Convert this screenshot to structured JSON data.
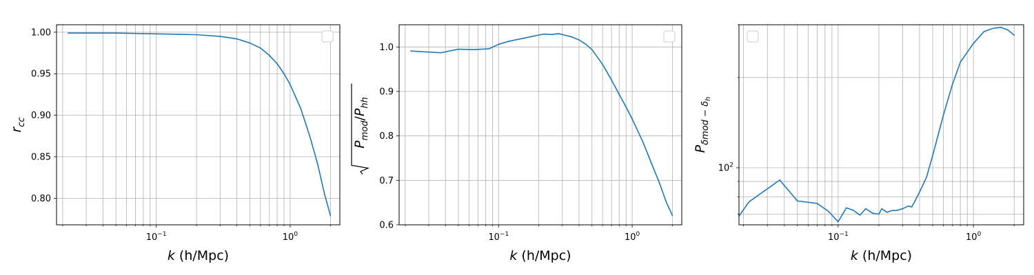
{
  "chart_data": [
    {
      "type": "line",
      "xscale": "log",
      "yscale": "linear",
      "xlim": [
        0.018,
        2.35
      ],
      "ylim": [
        0.768,
        1.009
      ],
      "grid": true,
      "legend": "top-right (empty)",
      "xlabel": {
        "var": "k",
        "unit": " (h/Mpc)"
      },
      "ylabel": {
        "base": "r",
        "sub": "cc"
      },
      "xticks": [
        {
          "base": "10",
          "exp": "−1",
          "value": 0.1
        },
        {
          "base": "10",
          "exp": "0",
          "value": 1.0
        }
      ],
      "yticks": [
        {
          "label": "0.80",
          "value": 0.8
        },
        {
          "label": "0.85",
          "value": 0.85
        },
        {
          "label": "0.90",
          "value": 0.9
        },
        {
          "label": "0.95",
          "value": 0.95
        },
        {
          "label": "1.00",
          "value": 1.0
        }
      ],
      "series": [
        {
          "color": "#1f77b4",
          "x": [
            0.022,
            0.037,
            0.05,
            0.07,
            0.1,
            0.15,
            0.2,
            0.3,
            0.4,
            0.5,
            0.6,
            0.7,
            0.8,
            0.9,
            1.0,
            1.2,
            1.4,
            1.6,
            1.8,
            2.0
          ],
          "y": [
            0.999,
            0.999,
            0.999,
            0.9985,
            0.998,
            0.9975,
            0.997,
            0.995,
            0.992,
            0.987,
            0.981,
            0.972,
            0.962,
            0.95,
            0.937,
            0.908,
            0.875,
            0.842,
            0.806,
            0.779
          ]
        }
      ]
    },
    {
      "type": "line",
      "xscale": "log",
      "yscale": "linear",
      "xlim": [
        0.018,
        2.35
      ],
      "ylim": [
        0.6,
        1.05
      ],
      "grid": true,
      "legend": "top-right (empty)",
      "xlabel": {
        "var": "k",
        "unit": " (h/Mpc)"
      },
      "ylabel": {
        "text": "P",
        "sub1": "mod",
        "sub2": "hh"
      },
      "xticks": [
        {
          "base": "10",
          "exp": "−1",
          "value": 0.1
        },
        {
          "base": "10",
          "exp": "0",
          "value": 1.0
        }
      ],
      "yticks": [
        {
          "label": "0.6",
          "value": 0.6
        },
        {
          "label": "0.7",
          "value": 0.7
        },
        {
          "label": "0.8",
          "value": 0.8
        },
        {
          "label": "0.9",
          "value": 0.9
        },
        {
          "label": "1.0",
          "value": 1.0
        }
      ],
      "series": [
        {
          "color": "#1f77b4",
          "x": [
            0.022,
            0.037,
            0.05,
            0.065,
            0.085,
            0.1,
            0.12,
            0.15,
            0.18,
            0.2,
            0.22,
            0.25,
            0.28,
            0.3,
            0.35,
            0.4,
            0.45,
            0.5,
            0.6,
            0.7,
            0.8,
            0.9,
            1.0,
            1.2,
            1.4,
            1.6,
            1.8,
            2.0
          ],
          "y": [
            0.991,
            0.987,
            0.995,
            0.994,
            0.996,
            1.006,
            1.013,
            1.019,
            1.024,
            1.027,
            1.029,
            1.028,
            1.03,
            1.028,
            1.023,
            1.016,
            1.006,
            0.994,
            0.961,
            0.926,
            0.893,
            0.865,
            0.838,
            0.787,
            0.737,
            0.694,
            0.651,
            0.621
          ]
        }
      ]
    },
    {
      "type": "line",
      "xscale": "log",
      "yscale": "log",
      "xlim": [
        0.0185,
        2.35
      ],
      "ylim": [
        64.5,
        300
      ],
      "grid": true,
      "legend": "top-left (empty)",
      "xlabel": {
        "var": "k",
        "unit": " (h/Mpc)"
      },
      "ylabel": {
        "base": "P",
        "sub": "δmod − δ",
        "subsub": "h"
      },
      "xticks": [
        {
          "base": "10",
          "exp": "−1",
          "value": 0.1
        },
        {
          "base": "10",
          "exp": "0",
          "value": 1.0
        }
      ],
      "yticks": [
        {
          "base": "10",
          "exp": "2",
          "value": 100
        }
      ],
      "series": [
        {
          "color": "#1f77b4",
          "x": [
            0.0185,
            0.022,
            0.037,
            0.05,
            0.07,
            0.085,
            0.1,
            0.115,
            0.13,
            0.145,
            0.16,
            0.18,
            0.2,
            0.21,
            0.23,
            0.25,
            0.27,
            0.3,
            0.33,
            0.35,
            0.37,
            0.4,
            0.45,
            0.5,
            0.6,
            0.7,
            0.8,
            1.0,
            1.2,
            1.4,
            1.6,
            1.8,
            2.0
          ],
          "y": [
            69.0,
            77.0,
            91.0,
            77.5,
            76.0,
            71.5,
            66.0,
            73.5,
            72.0,
            69.5,
            73.0,
            70.5,
            70.0,
            73.0,
            71.0,
            72.0,
            72.0,
            73.0,
            74.5,
            74.0,
            77.5,
            83.0,
            93.0,
            110.0,
            150.0,
            190.0,
            225.0,
            260.0,
            285.0,
            292.0,
            294.0,
            288.0,
            277.0
          ]
        }
      ]
    }
  ]
}
